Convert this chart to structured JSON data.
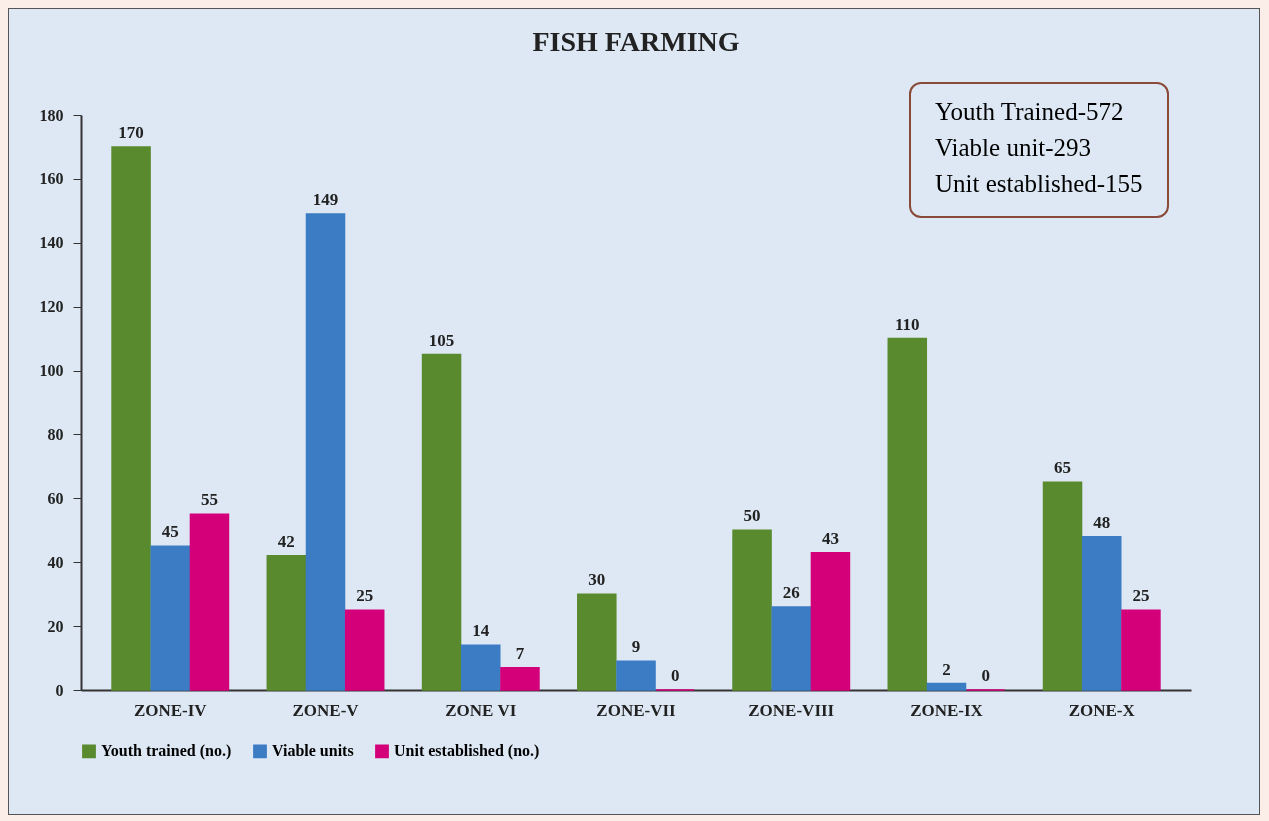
{
  "chart_data": {
    "type": "bar",
    "title": "FISH FARMING",
    "categories": [
      "ZONE-IV",
      "ZONE-V",
      "ZONE VI",
      "ZONE-VII",
      "ZONE-VIII",
      "ZONE-IX",
      "ZONE-X"
    ],
    "series": [
      {
        "name": "Youth trained (no.)",
        "color": "#5a8a2e",
        "values": [
          170,
          42,
          105,
          30,
          50,
          110,
          65
        ]
      },
      {
        "name": "Viable units",
        "color": "#3b7cc4",
        "values": [
          45,
          149,
          14,
          9,
          26,
          2,
          48
        ]
      },
      {
        "name": "Unit established (no.)",
        "color": "#d4007a",
        "values": [
          55,
          25,
          7,
          0,
          43,
          0,
          25
        ]
      }
    ],
    "ylim": [
      0,
      180
    ],
    "yticks": [
      0,
      20,
      40,
      60,
      80,
      100,
      120,
      140,
      160,
      180
    ],
    "grid": false,
    "legend": "bottom",
    "data_labels": true,
    "annotations": [
      "Youth Trained-572",
      "Viable unit-293",
      "Unit established-155"
    ]
  }
}
